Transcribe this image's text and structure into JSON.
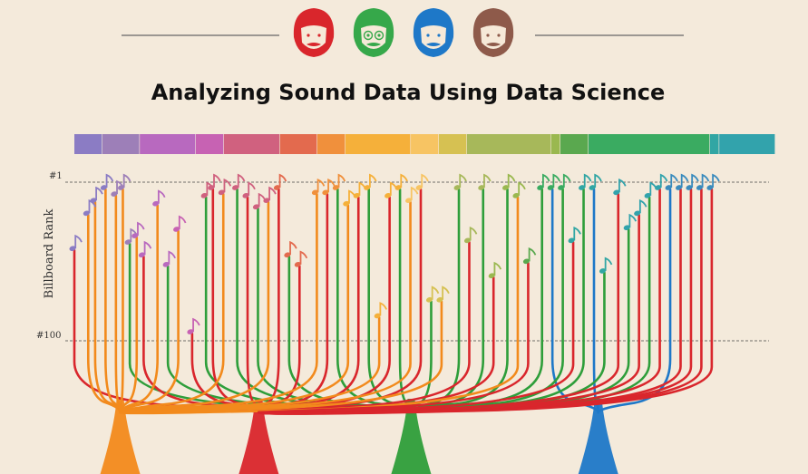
{
  "title": "Analyzing Sound Data Using Data Science",
  "y_axis_label": "Billboard Rank",
  "rank_top_label": "#1",
  "rank_bottom_label": "#100",
  "band_members": [
    {
      "name": "face-red",
      "color": "#d9262c"
    },
    {
      "name": "face-green",
      "color": "#36a84a"
    },
    {
      "name": "face-blue",
      "color": "#1e78c8"
    },
    {
      "name": "face-brown",
      "color": "#8e5a4a"
    }
  ],
  "timeline_colors": [
    "#8b7cc4",
    "#9d7fb8",
    "#b869bf",
    "#c762b3",
    "#d0617f",
    "#e36a4e",
    "#f0903c",
    "#f5b03a",
    "#f7c463",
    "#d6c152",
    "#a7b85a",
    "#9ab84f",
    "#5aa84f",
    "#3aab61",
    "#31a6a4",
    "#32a3ac",
    "#3a8bbd"
  ],
  "timeline_weights": [
    3,
    4,
    6,
    3,
    6,
    4,
    3,
    7,
    3,
    3,
    9,
    1,
    3,
    13,
    1,
    6
  ],
  "trunks": [
    {
      "color": "#f28a1c",
      "pos": 0.04
    },
    {
      "color": "#d9262c",
      "pos": 0.24
    },
    {
      "color": "#2e9e3a",
      "pos": 0.46
    },
    {
      "color": "#1e78c8",
      "pos": 0.73
    }
  ],
  "songs": [
    {
      "x": 0.0,
      "rank": 39,
      "color": "#8b7cc4",
      "trunk": 1
    },
    {
      "x": 0.02,
      "rank": 17,
      "color": "#8b7cc4",
      "trunk": 0
    },
    {
      "x": 0.03,
      "rank": 9,
      "color": "#8b7cc4",
      "trunk": 0
    },
    {
      "x": 0.045,
      "rank": 1,
      "color": "#8b7cc4",
      "trunk": 0
    },
    {
      "x": 0.06,
      "rank": 5,
      "color": "#9d7fb8",
      "trunk": 0
    },
    {
      "x": 0.07,
      "rank": 1,
      "color": "#9d7fb8",
      "trunk": 0
    },
    {
      "x": 0.08,
      "rank": 35,
      "color": "#9d7fb8",
      "trunk": 2
    },
    {
      "x": 0.09,
      "rank": 31,
      "color": "#b869bf",
      "trunk": 0
    },
    {
      "x": 0.1,
      "rank": 43,
      "color": "#b869bf",
      "trunk": 1
    },
    {
      "x": 0.12,
      "rank": 11,
      "color": "#b869bf",
      "trunk": 0
    },
    {
      "x": 0.135,
      "rank": 49,
      "color": "#b869bf",
      "trunk": 2
    },
    {
      "x": 0.15,
      "rank": 27,
      "color": "#c762b3",
      "trunk": 0
    },
    {
      "x": 0.17,
      "rank": 91,
      "color": "#c762b3",
      "trunk": 1
    },
    {
      "x": 0.19,
      "rank": 6,
      "color": "#d0617f",
      "trunk": 2
    },
    {
      "x": 0.2,
      "rank": 1,
      "color": "#d0617f",
      "trunk": 1
    },
    {
      "x": 0.215,
      "rank": 4,
      "color": "#d0617f",
      "trunk": 0
    },
    {
      "x": 0.235,
      "rank": 1,
      "color": "#d0617f",
      "trunk": 2
    },
    {
      "x": 0.25,
      "rank": 6,
      "color": "#d0617f",
      "trunk": 1
    },
    {
      "x": 0.265,
      "rank": 13,
      "color": "#d0617f",
      "trunk": 2
    },
    {
      "x": 0.28,
      "rank": 9,
      "color": "#d0617f",
      "trunk": 0
    },
    {
      "x": 0.295,
      "rank": 1,
      "color": "#e36a4e",
      "trunk": 1
    },
    {
      "x": 0.31,
      "rank": 43,
      "color": "#e36a4e",
      "trunk": 2
    },
    {
      "x": 0.325,
      "rank": 49,
      "color": "#e36a4e",
      "trunk": 1
    },
    {
      "x": 0.35,
      "rank": 4,
      "color": "#f0903c",
      "trunk": 0
    },
    {
      "x": 0.365,
      "rank": 4,
      "color": "#f0903c",
      "trunk": 1
    },
    {
      "x": 0.38,
      "rank": 1,
      "color": "#f0903c",
      "trunk": 2
    },
    {
      "x": 0.395,
      "rank": 11,
      "color": "#f5b03a",
      "trunk": 0
    },
    {
      "x": 0.41,
      "rank": 6,
      "color": "#f5b03a",
      "trunk": 1
    },
    {
      "x": 0.425,
      "rank": 1,
      "color": "#f5b03a",
      "trunk": 2
    },
    {
      "x": 0.44,
      "rank": 81,
      "color": "#f5b03a",
      "trunk": 0
    },
    {
      "x": 0.455,
      "rank": 6,
      "color": "#f5b03a",
      "trunk": 1
    },
    {
      "x": 0.47,
      "rank": 1,
      "color": "#f5b03a",
      "trunk": 2
    },
    {
      "x": 0.485,
      "rank": 9,
      "color": "#f7c463",
      "trunk": 0
    },
    {
      "x": 0.5,
      "rank": 1,
      "color": "#f7c463",
      "trunk": 1
    },
    {
      "x": 0.515,
      "rank": 71,
      "color": "#d6c152",
      "trunk": 2
    },
    {
      "x": 0.53,
      "rank": 71,
      "color": "#d6c152",
      "trunk": 0
    },
    {
      "x": 0.555,
      "rank": 1,
      "color": "#a7b85a",
      "trunk": 2
    },
    {
      "x": 0.57,
      "rank": 34,
      "color": "#a7b85a",
      "trunk": 1
    },
    {
      "x": 0.59,
      "rank": 1,
      "color": "#a7b85a",
      "trunk": 2
    },
    {
      "x": 0.605,
      "rank": 56,
      "color": "#9ab84f",
      "trunk": 1
    },
    {
      "x": 0.625,
      "rank": 1,
      "color": "#9ab84f",
      "trunk": 2
    },
    {
      "x": 0.64,
      "rank": 6,
      "color": "#9ab84f",
      "trunk": 0
    },
    {
      "x": 0.655,
      "rank": 47,
      "color": "#5aa84f",
      "trunk": 1
    },
    {
      "x": 0.675,
      "rank": 1,
      "color": "#3aab61",
      "trunk": 2
    },
    {
      "x": 0.69,
      "rank": 1,
      "color": "#3aab61",
      "trunk": 3
    },
    {
      "x": 0.705,
      "rank": 1,
      "color": "#3aab61",
      "trunk": 2
    },
    {
      "x": 0.72,
      "rank": 34,
      "color": "#31a6a4",
      "trunk": 1
    },
    {
      "x": 0.735,
      "rank": 1,
      "color": "#31a6a4",
      "trunk": 2
    },
    {
      "x": 0.75,
      "rank": 1,
      "color": "#31a6a4",
      "trunk": 3
    },
    {
      "x": 0.765,
      "rank": 53,
      "color": "#31a6a4",
      "trunk": 2
    },
    {
      "x": 0.785,
      "rank": 4,
      "color": "#32a3ac",
      "trunk": 1
    },
    {
      "x": 0.8,
      "rank": 26,
      "color": "#32a3ac",
      "trunk": 2
    },
    {
      "x": 0.815,
      "rank": 17,
      "color": "#32a3ac",
      "trunk": 1
    },
    {
      "x": 0.83,
      "rank": 6,
      "color": "#32a3ac",
      "trunk": 2
    },
    {
      "x": 0.845,
      "rank": 1,
      "color": "#32a3ac",
      "trunk": 1
    },
    {
      "x": 0.86,
      "rank": 1,
      "color": "#3a8bbd",
      "trunk": 3
    },
    {
      "x": 0.875,
      "rank": 1,
      "color": "#3a8bbd",
      "trunk": 1
    },
    {
      "x": 0.89,
      "rank": 1,
      "color": "#3a8bbd",
      "trunk": 1
    },
    {
      "x": 0.905,
      "rank": 1,
      "color": "#3a8bbd",
      "trunk": 1
    },
    {
      "x": 0.92,
      "rank": 1,
      "color": "#3a8bbd",
      "trunk": 1
    }
  ]
}
